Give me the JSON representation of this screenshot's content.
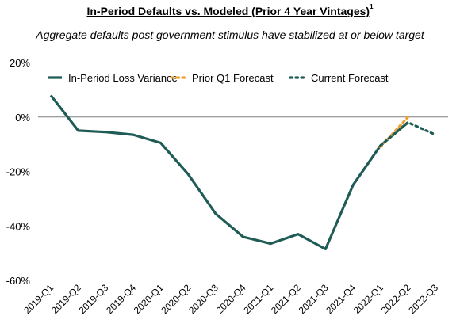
{
  "title": "In-Period Defaults vs. Modeled (Prior 4 Year Vintages)",
  "title_footnote": "1",
  "subtitle": "Aggregate defaults post government stimulus have stabilized at or below target",
  "chart_data": {
    "type": "line",
    "title": "In-Period Defaults vs. Modeled (Prior 4 Year Vintages)",
    "x": [
      "2019-Q1",
      "2019-Q2",
      "2019-Q3",
      "2019-Q4",
      "2020-Q1",
      "2020-Q2",
      "2020-Q3",
      "2020-Q4",
      "2021-Q1",
      "2021-Q2",
      "2021-Q3",
      "2021-Q4",
      "2022-Q1",
      "2022-Q2",
      "2022-Q3"
    ],
    "ylim": [
      -60,
      20
    ],
    "yticks": [
      20,
      0,
      -20,
      -40,
      -60
    ],
    "ytick_labels": [
      "20%",
      "0%",
      "-20%",
      "-40%",
      "-60%"
    ],
    "grid": false,
    "zero_line": true,
    "legend_position": "top",
    "series": [
      {
        "name": "In-Period Loss Variance",
        "color": "#1f5c56",
        "style": "solid",
        "points": [
          {
            "x": "2019-Q1",
            "y": 8
          },
          {
            "x": "2019-Q2",
            "y": -5
          },
          {
            "x": "2019-Q3",
            "y": -5.5
          },
          {
            "x": "2019-Q4",
            "y": -6.5
          },
          {
            "x": "2020-Q1",
            "y": -9.5
          },
          {
            "x": "2020-Q2",
            "y": -21
          },
          {
            "x": "2020-Q3",
            "y": -35.5
          },
          {
            "x": "2020-Q4",
            "y": -44
          },
          {
            "x": "2021-Q1",
            "y": -46.5
          },
          {
            "x": "2021-Q2",
            "y": -43
          },
          {
            "x": "2021-Q3",
            "y": -48.5
          },
          {
            "x": "2021-Q4",
            "y": -25
          },
          {
            "x": "2022-Q1",
            "y": -10.5
          },
          {
            "x": "2022-Q2",
            "y": -2
          }
        ]
      },
      {
        "name": "Prior Q1 Forecast",
        "color": "#f0a030",
        "style": "dotted",
        "points": [
          {
            "x": "2022-Q1",
            "y": -11
          },
          {
            "x": "2022-Q2",
            "y": 0
          }
        ]
      },
      {
        "name": "Current Forecast",
        "color": "#1f5c56",
        "style": "dotted",
        "points": [
          {
            "x": "2022-Q1",
            "y": -10.5
          },
          {
            "x": "2022-Q2",
            "y": -2
          },
          {
            "x": "2022-Q3",
            "y": -6.5
          }
        ]
      }
    ]
  }
}
